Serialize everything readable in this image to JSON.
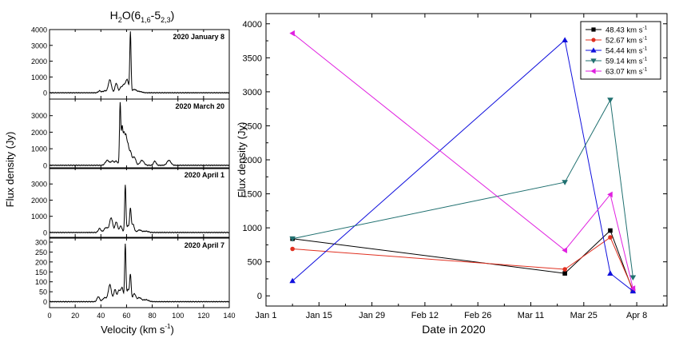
{
  "chart_data": [
    {
      "type": "line",
      "title_parts": {
        "main": "H",
        "sub_a": "2",
        "mid": "O(6",
        "sub_b": "1,6",
        "dash": "-5",
        "sub_c": "2,3",
        "end": ")"
      },
      "xlabel": "Velocity (km s",
      "xlabel_sup": "-1",
      "xlabel_end": ")",
      "ylabel": "Flux density (Jy)",
      "xlim": [
        0,
        140
      ],
      "xticks": [
        "0",
        "20",
        "40",
        "60",
        "80",
        "100",
        "120",
        "140"
      ],
      "panels": [
        {
          "label": "2020 January 8",
          "ylim": [
            -400,
            4000
          ],
          "yticks": [
            "0",
            "1000",
            "2000",
            "3000",
            "4000"
          ],
          "peaks": [
            [
              39,
              120,
              1.0
            ],
            [
              43,
              120,
              1.5
            ],
            [
              47,
              820,
              1.2
            ],
            [
              52,
              600,
              1.0
            ],
            [
              55.5,
              300,
              1.0
            ],
            [
              58,
              500,
              1.2
            ],
            [
              60.5,
              800,
              1.0
            ],
            [
              63,
              3800,
              0.5
            ],
            [
              66,
              200,
              1.5
            ],
            [
              70,
              80,
              2
            ]
          ]
        },
        {
          "label": "2020 March 20",
          "ylim": [
            -200,
            4000
          ],
          "yticks": [
            "0",
            "1000",
            "2000",
            "3000"
          ],
          "peaks": [
            [
              45,
              300,
              1.5
            ],
            [
              49,
              250,
              1.2
            ],
            [
              52,
              250,
              1.0
            ],
            [
              55,
              3700,
              0.5
            ],
            [
              56.5,
              2200,
              0.6
            ],
            [
              58,
              1800,
              0.7
            ],
            [
              59.5,
              1500,
              0.7
            ],
            [
              61,
              1100,
              0.8
            ],
            [
              63,
              800,
              1.0
            ],
            [
              66,
              500,
              1.2
            ],
            [
              72,
              300,
              1.5
            ],
            [
              82,
              250,
              1.0
            ],
            [
              93,
              300,
              1.5
            ]
          ]
        },
        {
          "label": "2020 April 1",
          "ylim": [
            -300,
            4000
          ],
          "yticks": [
            "0",
            "1000",
            "2000",
            "3000"
          ],
          "peaks": [
            [
              39,
              250,
              1.0
            ],
            [
              44,
              300,
              1.5
            ],
            [
              48,
              900,
              1.2
            ],
            [
              52,
              650,
              1.0
            ],
            [
              55.5,
              400,
              1.0
            ],
            [
              59,
              2900,
              0.5
            ],
            [
              61,
              400,
              1.0
            ],
            [
              63,
              1400,
              0.6
            ],
            [
              65,
              500,
              1.0
            ],
            [
              70,
              150,
              1.5
            ],
            [
              75,
              80,
              2
            ]
          ]
        },
        {
          "label": "2020 April 7",
          "ylim": [
            -30,
            320
          ],
          "yticks": [
            "0",
            "50",
            "100",
            "150",
            "200",
            "250",
            "300"
          ],
          "peaks": [
            [
              38,
              25,
              1.0
            ],
            [
              43,
              20,
              1.5
            ],
            [
              47,
              85,
              1.2
            ],
            [
              51,
              60,
              1.0
            ],
            [
              54,
              55,
              1.0
            ],
            [
              56.5,
              70,
              1.0
            ],
            [
              59,
              280,
              0.5
            ],
            [
              61,
              60,
              1.0
            ],
            [
              63,
              130,
              0.6
            ],
            [
              66,
              40,
              1.2
            ],
            [
              70,
              20,
              1.5
            ],
            [
              75,
              10,
              2
            ]
          ]
        }
      ]
    },
    {
      "type": "line",
      "xlabel": "Date in 2020",
      "ylabel": "Flux density (Jy)",
      "xlim": [
        0,
        106
      ],
      "ylim": [
        -150,
        4150
      ],
      "xticks": [
        {
          "v": 0,
          "label": "Jan 1"
        },
        {
          "v": 14,
          "label": "Jan 15"
        },
        {
          "v": 28,
          "label": "Jan 29"
        },
        {
          "v": 42,
          "label": "Feb 12"
        },
        {
          "v": 56,
          "label": "Feb 26"
        },
        {
          "v": 70,
          "label": "Mar 11"
        },
        {
          "v": 84,
          "label": "Mar 25"
        },
        {
          "v": 98,
          "label": "Apr 8"
        }
      ],
      "yticks": [
        0,
        500,
        1000,
        1500,
        2000,
        2500,
        3000,
        3500,
        4000
      ],
      "legend_unit": " km s",
      "legend_sup": "-1",
      "series": [
        {
          "name": "48.43",
          "color": "#000000",
          "marker": "square",
          "x": [
            7,
            79,
            91,
            97
          ],
          "y": [
            840,
            330,
            960,
            70
          ]
        },
        {
          "name": "52.67",
          "color": "#e03020",
          "marker": "circle",
          "x": [
            7,
            79,
            91,
            97
          ],
          "y": [
            690,
            390,
            860,
            90
          ]
        },
        {
          "name": "54.44",
          "color": "#1010dd",
          "marker": "triangle-up",
          "x": [
            7,
            79,
            91,
            97
          ],
          "y": [
            220,
            3760,
            330,
            70
          ]
        },
        {
          "name": "59.14",
          "color": "#207070",
          "marker": "triangle-down",
          "x": [
            7,
            79,
            91,
            97
          ],
          "y": [
            840,
            1670,
            2880,
            270
          ]
        },
        {
          "name": "63.07",
          "color": "#e020e0",
          "marker": "triangle-left",
          "x": [
            7,
            79,
            91,
            97
          ],
          "y": [
            3860,
            670,
            1490,
            110
          ]
        }
      ]
    }
  ]
}
